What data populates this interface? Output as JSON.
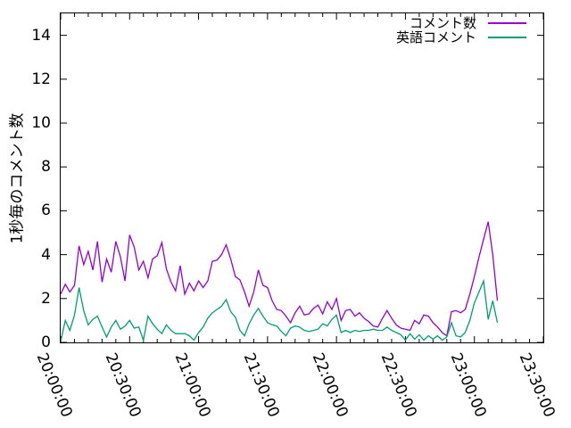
{
  "figure": {
    "background_color": "#ffffff",
    "axis_color": "#000000"
  },
  "chart_data": {
    "type": "line",
    "title": "",
    "xlabel": "",
    "ylabel": "1秒毎のコメント数",
    "grid": false,
    "legend_position": "top-right-inside",
    "x_axis": {
      "tick_labels": [
        "20:00:00",
        "20:30:00",
        "21:00:00",
        "21:30:00",
        "22:00:00",
        "22:30:00",
        "23:00:00",
        "23:30:00"
      ],
      "tick_minutes": [
        0,
        30,
        60,
        90,
        120,
        150,
        180,
        210
      ],
      "minor_tick_every_minutes": 6,
      "range_minutes": [
        0,
        210
      ],
      "labels_rotated": true
    },
    "y_axis": {
      "tick_labels": [
        "0",
        "2",
        "4",
        "6",
        "8",
        "10",
        "12",
        "14"
      ],
      "tick_values": [
        0,
        2,
        4,
        6,
        8,
        10,
        12,
        14
      ],
      "range": [
        0,
        15
      ]
    },
    "x_start_time": "20:00:00",
    "x_end_time_of_data": "23:10:00",
    "series": [
      {
        "name": "コメント数",
        "color": "#9400d3",
        "start_minute": 0,
        "step_minutes": 2,
        "values": [
          2.2,
          2.65,
          2.3,
          2.6,
          4.4,
          3.55,
          4.15,
          3.3,
          4.6,
          2.75,
          3.8,
          3.2,
          4.6,
          3.9,
          2.8,
          4.9,
          4.35,
          3.3,
          3.7,
          2.95,
          3.8,
          3.95,
          4.55,
          3.35,
          2.75,
          2.35,
          3.5,
          2.2,
          2.7,
          2.35,
          2.8,
          2.5,
          2.8,
          3.7,
          3.75,
          4.0,
          4.45,
          3.8,
          3.0,
          2.85,
          2.3,
          1.65,
          2.3,
          3.3,
          2.6,
          2.5,
          1.9,
          1.5,
          1.45,
          1.2,
          0.9,
          1.35,
          1.65,
          1.25,
          1.3,
          1.55,
          1.7,
          1.3,
          1.85,
          1.5,
          2.0,
          1.0,
          1.45,
          1.5,
          1.2,
          1.35,
          1.1,
          0.95,
          0.75,
          0.7,
          1.1,
          1.45,
          1.1,
          0.8,
          0.65,
          0.6,
          0.55,
          1.0,
          0.85,
          1.25,
          1.2,
          0.9,
          0.7,
          0.45,
          0.3,
          1.4,
          1.45,
          1.35,
          1.5,
          2.2,
          3.0,
          3.9,
          4.7,
          5.5,
          4.0,
          1.9
        ]
      },
      {
        "name": "英語コメント",
        "color": "#009e73",
        "start_minute": 0,
        "step_minutes": 2,
        "values": [
          0.05,
          1.0,
          0.55,
          1.25,
          2.5,
          1.45,
          0.8,
          1.05,
          1.2,
          0.7,
          0.25,
          0.7,
          1.0,
          0.6,
          0.75,
          1.0,
          0.65,
          0.7,
          0.1,
          1.2,
          0.85,
          0.6,
          0.4,
          0.8,
          0.55,
          0.4,
          0.4,
          0.4,
          0.3,
          0.1,
          0.45,
          0.7,
          1.1,
          1.35,
          1.5,
          1.65,
          1.95,
          1.4,
          1.15,
          0.55,
          0.3,
          0.85,
          1.25,
          1.55,
          1.2,
          0.9,
          0.8,
          0.75,
          0.5,
          0.3,
          0.65,
          0.75,
          0.7,
          0.55,
          0.5,
          0.55,
          0.6,
          0.85,
          0.75,
          1.05,
          1.25,
          0.45,
          0.55,
          0.45,
          0.55,
          0.5,
          0.55,
          0.55,
          0.6,
          0.55,
          0.55,
          0.7,
          0.55,
          0.45,
          0.35,
          0.1,
          0.4,
          0.15,
          0.35,
          0.1,
          0.3,
          0.15,
          0.3,
          0.1,
          0.25,
          0.9,
          0.3,
          0.25,
          0.45,
          1.0,
          1.8,
          2.3,
          2.8,
          1.05,
          1.9,
          0.9
        ]
      }
    ]
  }
}
